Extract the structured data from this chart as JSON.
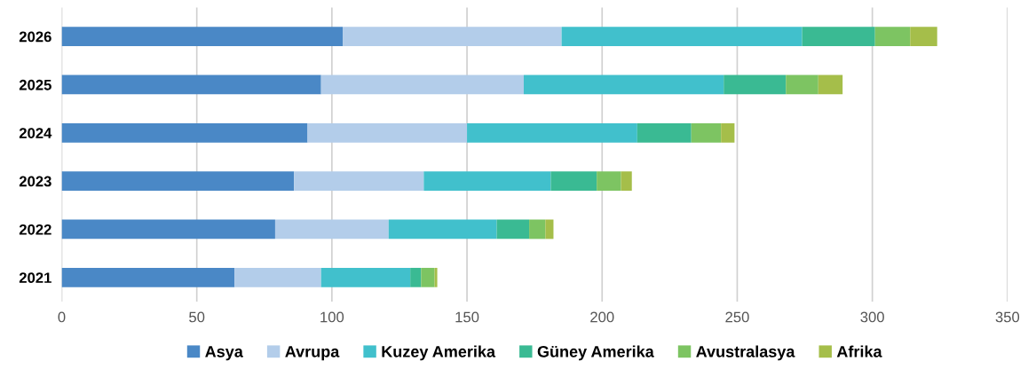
{
  "chart_data": {
    "type": "bar",
    "orientation": "horizontal",
    "stacked": true,
    "categories": [
      "2026",
      "2025",
      "2024",
      "2023",
      "2022",
      "2021"
    ],
    "series": [
      {
        "name": "Asya",
        "color": "#4a88c6",
        "values": [
          104,
          96,
          91,
          86,
          79,
          64
        ]
      },
      {
        "name": "Avrupa",
        "color": "#b3cdea",
        "values": [
          81,
          75,
          59,
          48,
          42,
          32
        ]
      },
      {
        "name": "Kuzey Amerika",
        "color": "#41c0cc",
        "values": [
          89,
          74,
          63,
          47,
          40,
          33
        ]
      },
      {
        "name": "Güney Amerika",
        "color": "#3aba93",
        "values": [
          27,
          23,
          20,
          17,
          12,
          4
        ]
      },
      {
        "name": "Avustralasya",
        "color": "#7dc462",
        "values": [
          13,
          12,
          11,
          9,
          6,
          5
        ]
      },
      {
        "name": "Afrika",
        "color": "#a5be4a",
        "values": [
          10,
          9,
          5,
          4,
          3,
          1
        ]
      }
    ],
    "xlim": [
      0,
      350
    ],
    "xticks": [
      0,
      50,
      100,
      150,
      200,
      250,
      300,
      350
    ],
    "grid": "x",
    "legend": "bottom"
  }
}
